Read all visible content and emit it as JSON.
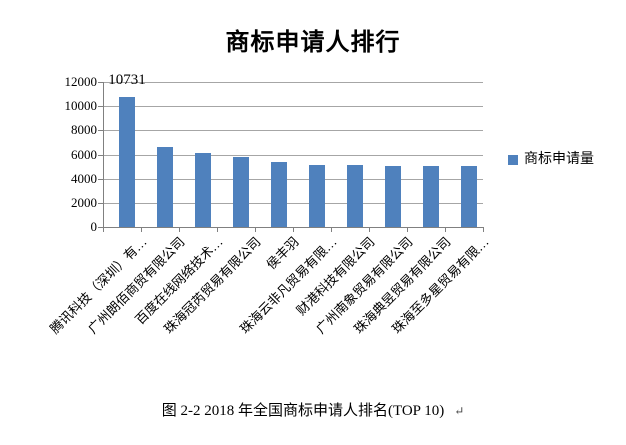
{
  "title": "商标申请人排行",
  "legend": {
    "label": "商标申请量",
    "color": "#4F81BD"
  },
  "caption": {
    "text": "图 2-2 2018 年全国商标申请人排名(TOP 10)",
    "return_mark": "↵"
  },
  "chart_data": {
    "type": "bar",
    "title": "商标申请人排行",
    "categories": [
      "腾讯科技（深圳）有…",
      "广州朗佰商贸有限公司",
      "百度在线网络技术…",
      "珠海冠芮贸易有限公司",
      "侯丰羽",
      "珠海云非凡贸易有限…",
      "财港科技有限公司",
      "广州南象贸易有限公司",
      "珠海典昱贸易有限公司",
      "珠海至多星贸易有限…"
    ],
    "series": [
      {
        "name": "商标申请量",
        "values": [
          10731,
          6650,
          6100,
          5770,
          5400,
          5150,
          5150,
          5050,
          5050,
          5050
        ]
      }
    ],
    "ylim": [
      0,
      12000
    ],
    "yticks": [
      0,
      2000,
      4000,
      6000,
      8000,
      10000,
      12000
    ],
    "data_labels": [
      {
        "index": 0,
        "text": "10731"
      }
    ],
    "bar_color": "#4F81BD",
    "gridline_color": "#A6A6A6",
    "axis_color": "#808080",
    "grid": true,
    "legend_position": "right"
  }
}
